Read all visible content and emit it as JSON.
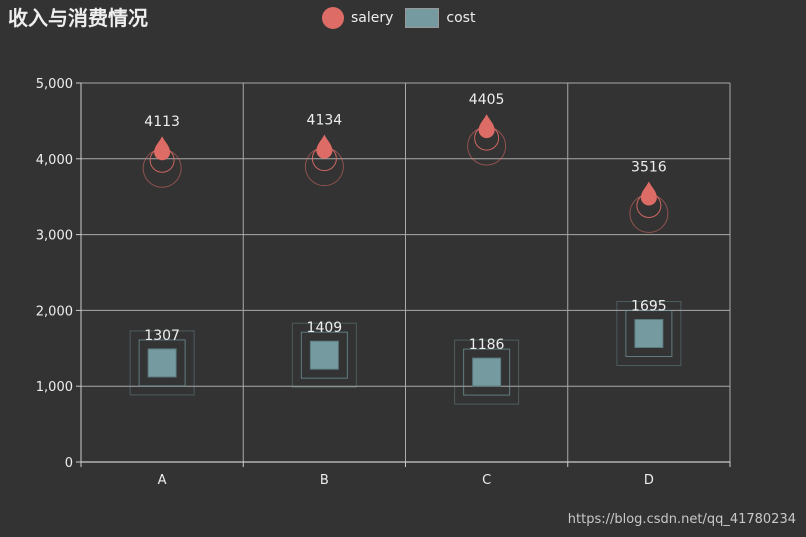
{
  "title": "收入与消费情况",
  "watermark": "https://blog.csdn.net/qq_41780234",
  "colors": {
    "background": "#333333",
    "salery": "#dd6b66",
    "cost": "#759aa0",
    "axis": "#cccccc",
    "text": "#eeeeee"
  },
  "chart_data": {
    "type": "scatter",
    "categories": [
      "A",
      "B",
      "C",
      "D"
    ],
    "series": [
      {
        "name": "salery",
        "symbol": "pin-with-ripple",
        "values": [
          4113,
          4134,
          4405,
          3516
        ],
        "labels": [
          "4113",
          "4134",
          "4405",
          "3516"
        ]
      },
      {
        "name": "cost",
        "symbol": "square-with-ripple",
        "values": [
          1307,
          1409,
          1186,
          1695
        ],
        "labels": [
          "1307",
          "1409",
          "1186",
          "1695"
        ]
      }
    ],
    "ylim": [
      0,
      5000
    ],
    "yticks": [
      0,
      1000,
      2000,
      3000,
      4000,
      5000
    ],
    "ytick_labels": [
      "0",
      "1,000",
      "2,000",
      "3,000",
      "4,000",
      "5,000"
    ],
    "grid": true,
    "legend_position": "top-center",
    "xlabel": "",
    "ylabel": ""
  }
}
